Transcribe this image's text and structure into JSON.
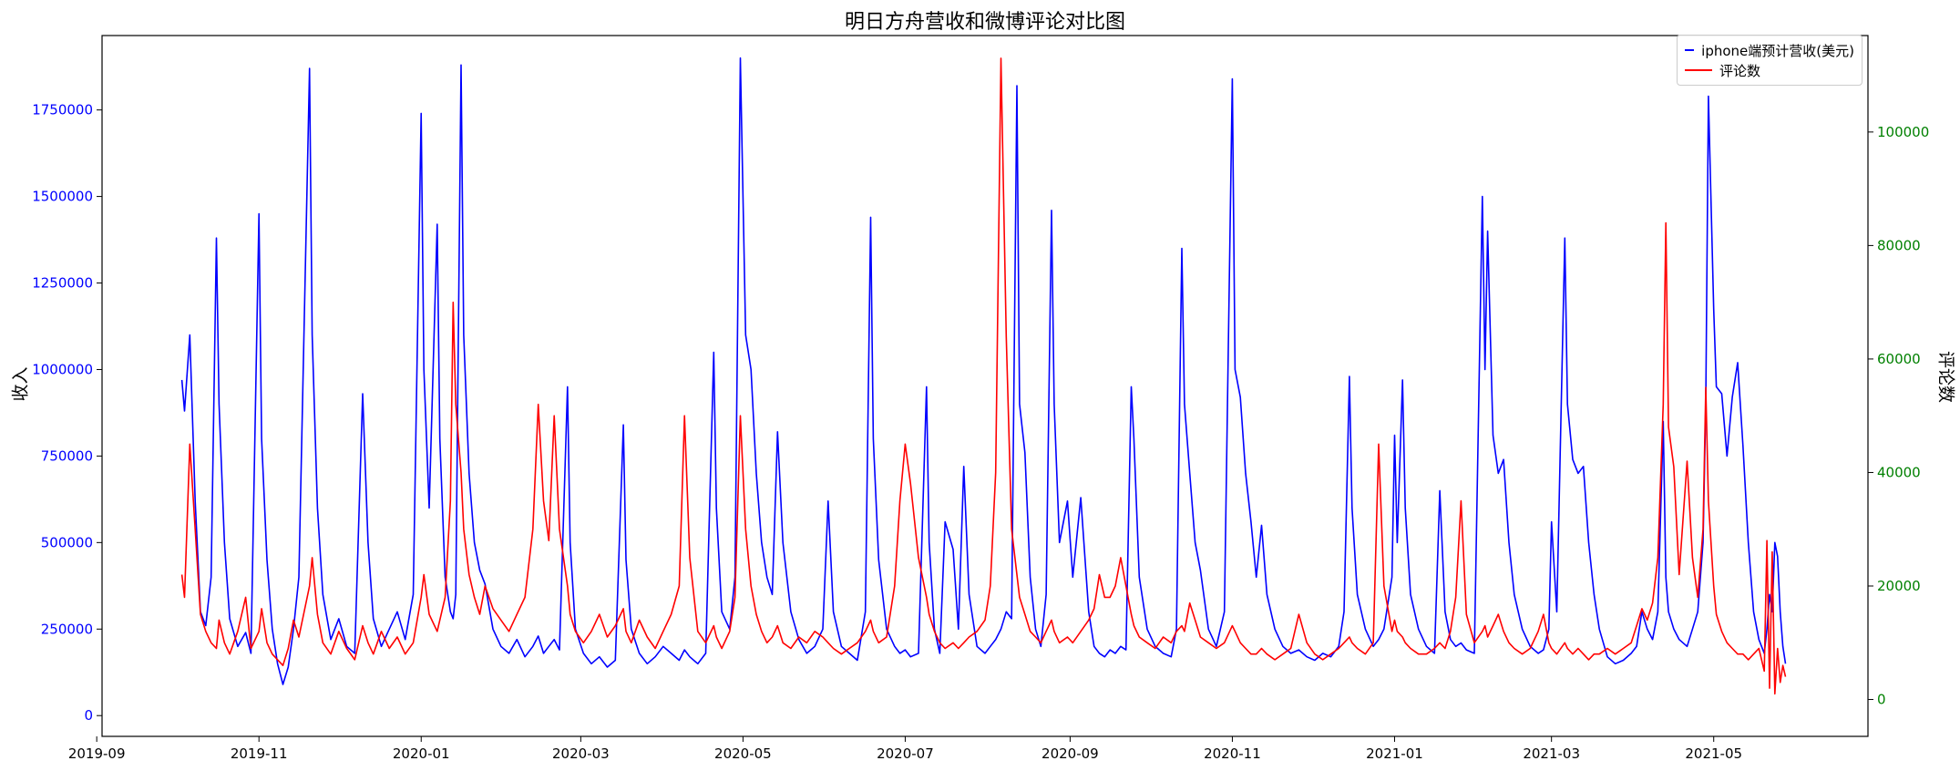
{
  "chart_data": {
    "type": "line",
    "title": "明日方舟营收和微博评论对比图",
    "grid": false,
    "legend_position": "upper right",
    "x_ticks": [
      "2019-09",
      "2019-11",
      "2020-01",
      "2020-03",
      "2020-05",
      "2020-07",
      "2020-09",
      "2020-11",
      "2021-01",
      "2021-03",
      "2021-05"
    ],
    "x_range": [
      "2019-09-03",
      "2021-06-28"
    ],
    "left_axis": {
      "label": "收入",
      "tick_color": "#0000ff",
      "ticks": [
        0,
        250000,
        500000,
        750000,
        1000000,
        1250000,
        1500000,
        1750000
      ],
      "range": [
        -60000,
        1965000
      ]
    },
    "right_axis": {
      "label": "评论数",
      "tick_color": "#008000",
      "ticks": [
        0,
        20000,
        40000,
        60000,
        80000,
        100000
      ],
      "range": [
        -6500,
        117000
      ]
    },
    "dates": [
      "2019-10-03",
      "2019-10-04",
      "2019-10-06",
      "2019-10-08",
      "2019-10-10",
      "2019-10-12",
      "2019-10-14",
      "2019-10-16",
      "2019-10-17",
      "2019-10-19",
      "2019-10-21",
      "2019-10-24",
      "2019-10-27",
      "2019-10-29",
      "2019-11-01",
      "2019-11-02",
      "2019-11-04",
      "2019-11-06",
      "2019-11-08",
      "2019-11-10",
      "2019-11-12",
      "2019-11-14",
      "2019-11-16",
      "2019-11-20",
      "2019-11-21",
      "2019-11-23",
      "2019-11-25",
      "2019-11-28",
      "2019-12-01",
      "2019-12-04",
      "2019-12-07",
      "2019-12-10",
      "2019-12-12",
      "2019-12-14",
      "2019-12-17",
      "2019-12-20",
      "2019-12-23",
      "2019-12-26",
      "2019-12-29",
      "2020-01-01",
      "2020-01-02",
      "2020-01-04",
      "2020-01-07",
      "2020-01-08",
      "2020-01-10",
      "2020-01-12",
      "2020-01-13",
      "2020-01-14",
      "2020-01-16",
      "2020-01-17",
      "2020-01-19",
      "2020-01-21",
      "2020-01-23",
      "2020-01-25",
      "2020-01-28",
      "2020-01-31",
      "2020-02-03",
      "2020-02-06",
      "2020-02-09",
      "2020-02-12",
      "2020-02-14",
      "2020-02-16",
      "2020-02-18",
      "2020-02-20",
      "2020-02-22",
      "2020-02-25",
      "2020-02-26",
      "2020-02-28",
      "2020-03-02",
      "2020-03-05",
      "2020-03-08",
      "2020-03-11",
      "2020-03-14",
      "2020-03-17",
      "2020-03-18",
      "2020-03-20",
      "2020-03-23",
      "2020-03-26",
      "2020-03-29",
      "2020-04-01",
      "2020-04-04",
      "2020-04-07",
      "2020-04-09",
      "2020-04-11",
      "2020-04-14",
      "2020-04-17",
      "2020-04-20",
      "2020-04-21",
      "2020-04-23",
      "2020-04-26",
      "2020-04-28",
      "2020-04-30",
      "2020-05-02",
      "2020-05-04",
      "2020-05-06",
      "2020-05-08",
      "2020-05-10",
      "2020-05-12",
      "2020-05-14",
      "2020-05-16",
      "2020-05-19",
      "2020-05-22",
      "2020-05-25",
      "2020-05-28",
      "2020-05-31",
      "2020-06-02",
      "2020-06-04",
      "2020-06-07",
      "2020-06-10",
      "2020-06-13",
      "2020-06-16",
      "2020-06-18",
      "2020-06-19",
      "2020-06-21",
      "2020-06-24",
      "2020-06-27",
      "2020-06-29",
      "2020-07-01",
      "2020-07-03",
      "2020-07-06",
      "2020-07-09",
      "2020-07-10",
      "2020-07-12",
      "2020-07-14",
      "2020-07-16",
      "2020-07-19",
      "2020-07-21",
      "2020-07-23",
      "2020-07-25",
      "2020-07-28",
      "2020-07-31",
      "2020-08-02",
      "2020-08-04",
      "2020-08-06",
      "2020-08-08",
      "2020-08-10",
      "2020-08-12",
      "2020-08-13",
      "2020-08-15",
      "2020-08-17",
      "2020-08-19",
      "2020-08-21",
      "2020-08-23",
      "2020-08-25",
      "2020-08-26",
      "2020-08-28",
      "2020-08-31",
      "2020-09-02",
      "2020-09-05",
      "2020-09-08",
      "2020-09-10",
      "2020-09-12",
      "2020-09-14",
      "2020-09-16",
      "2020-09-18",
      "2020-09-20",
      "2020-09-22",
      "2020-09-24",
      "2020-09-25",
      "2020-09-27",
      "2020-09-30",
      "2020-10-03",
      "2020-10-06",
      "2020-10-09",
      "2020-10-11",
      "2020-10-13",
      "2020-10-14",
      "2020-10-16",
      "2020-10-18",
      "2020-10-20",
      "2020-10-23",
      "2020-10-26",
      "2020-10-29",
      "2020-11-01",
      "2020-11-02",
      "2020-11-04",
      "2020-11-06",
      "2020-11-08",
      "2020-11-10",
      "2020-11-12",
      "2020-11-14",
      "2020-11-17",
      "2020-11-20",
      "2020-11-23",
      "2020-11-26",
      "2020-11-29",
      "2020-12-02",
      "2020-12-05",
      "2020-12-08",
      "2020-12-11",
      "2020-12-13",
      "2020-12-15",
      "2020-12-16",
      "2020-12-18",
      "2020-12-21",
      "2020-12-24",
      "2020-12-26",
      "2020-12-28",
      "2020-12-31",
      "2021-01-01",
      "2021-01-02",
      "2021-01-04",
      "2021-01-05",
      "2021-01-07",
      "2021-01-10",
      "2021-01-13",
      "2021-01-16",
      "2021-01-18",
      "2021-01-20",
      "2021-01-22",
      "2021-01-24",
      "2021-01-26",
      "2021-01-28",
      "2021-01-31",
      "2021-02-03",
      "2021-02-04",
      "2021-02-05",
      "2021-02-07",
      "2021-02-09",
      "2021-02-11",
      "2021-02-13",
      "2021-02-15",
      "2021-02-18",
      "2021-02-21",
      "2021-02-24",
      "2021-02-26",
      "2021-02-28",
      "2021-03-01",
      "2021-03-03",
      "2021-03-06",
      "2021-03-07",
      "2021-03-09",
      "2021-03-11",
      "2021-03-13",
      "2021-03-15",
      "2021-03-17",
      "2021-03-19",
      "2021-03-22",
      "2021-03-25",
      "2021-03-28",
      "2021-03-31",
      "2021-04-02",
      "2021-04-04",
      "2021-04-06",
      "2021-04-08",
      "2021-04-10",
      "2021-04-12",
      "2021-04-13",
      "2021-04-14",
      "2021-04-16",
      "2021-04-18",
      "2021-04-21",
      "2021-04-23",
      "2021-04-25",
      "2021-04-27",
      "2021-04-28",
      "2021-04-29",
      "2021-05-01",
      "2021-05-02",
      "2021-05-04",
      "2021-05-06",
      "2021-05-08",
      "2021-05-10",
      "2021-05-12",
      "2021-05-14",
      "2021-05-16",
      "2021-05-18",
      "2021-05-20",
      "2021-05-21",
      "2021-05-22",
      "2021-05-23",
      "2021-05-24",
      "2021-05-25",
      "2021-05-26",
      "2021-05-27",
      "2021-05-28"
    ],
    "series": [
      {
        "name": "iphone端预计营收(美元)",
        "color": "#0000ff",
        "axis": "left",
        "values": [
          970000,
          880000,
          1100000,
          620000,
          300000,
          260000,
          400000,
          1380000,
          900000,
          500000,
          280000,
          200000,
          240000,
          180000,
          1450000,
          800000,
          450000,
          250000,
          150000,
          90000,
          140000,
          250000,
          400000,
          1870000,
          1100000,
          600000,
          350000,
          220000,
          280000,
          200000,
          180000,
          930000,
          500000,
          280000,
          200000,
          250000,
          300000,
          220000,
          350000,
          1740000,
          1000000,
          600000,
          1420000,
          800000,
          400000,
          300000,
          280000,
          350000,
          1880000,
          1100000,
          700000,
          500000,
          420000,
          380000,
          250000,
          200000,
          180000,
          220000,
          170000,
          200000,
          230000,
          180000,
          200000,
          220000,
          190000,
          950000,
          500000,
          250000,
          180000,
          150000,
          170000,
          140000,
          160000,
          840000,
          450000,
          250000,
          180000,
          150000,
          170000,
          200000,
          180000,
          160000,
          190000,
          170000,
          150000,
          180000,
          1050000,
          600000,
          300000,
          250000,
          400000,
          1900000,
          1100000,
          1000000,
          700000,
          500000,
          400000,
          350000,
          820000,
          500000,
          300000,
          220000,
          180000,
          200000,
          250000,
          620000,
          300000,
          200000,
          180000,
          160000,
          300000,
          1440000,
          800000,
          450000,
          250000,
          200000,
          180000,
          190000,
          170000,
          180000,
          950000,
          500000,
          250000,
          180000,
          560000,
          480000,
          250000,
          720000,
          350000,
          200000,
          180000,
          200000,
          220000,
          250000,
          300000,
          280000,
          1820000,
          900000,
          760000,
          400000,
          250000,
          200000,
          350000,
          1460000,
          900000,
          500000,
          620000,
          400000,
          630000,
          300000,
          200000,
          180000,
          170000,
          190000,
          180000,
          200000,
          190000,
          950000,
          800000,
          400000,
          250000,
          200000,
          180000,
          170000,
          250000,
          1350000,
          900000,
          700000,
          500000,
          420000,
          250000,
          200000,
          300000,
          1840000,
          1000000,
          920000,
          700000,
          560000,
          400000,
          550000,
          350000,
          250000,
          200000,
          180000,
          190000,
          170000,
          160000,
          180000,
          170000,
          200000,
          300000,
          980000,
          600000,
          350000,
          250000,
          200000,
          220000,
          250000,
          400000,
          810000,
          500000,
          970000,
          600000,
          350000,
          250000,
          200000,
          180000,
          650000,
          300000,
          220000,
          200000,
          210000,
          190000,
          180000,
          1500000,
          1000000,
          1400000,
          810000,
          700000,
          740000,
          500000,
          350000,
          250000,
          200000,
          180000,
          190000,
          250000,
          560000,
          300000,
          1380000,
          900000,
          740000,
          700000,
          720000,
          500000,
          350000,
          250000,
          170000,
          150000,
          160000,
          180000,
          200000,
          300000,
          250000,
          220000,
          300000,
          850000,
          400000,
          300000,
          250000,
          220000,
          200000,
          250000,
          300000,
          500000,
          900000,
          1790000,
          1174000,
          950000,
          930000,
          750000,
          920000,
          1020000,
          780000,
          500000,
          300000,
          220000,
          180000,
          250000,
          350000,
          300000,
          500000,
          460000,
          300000,
          200000,
          150000
        ]
      },
      {
        "name": "评论数",
        "color": "#ff0000",
        "axis": "right",
        "values": [
          22000,
          18000,
          45000,
          30000,
          15000,
          12000,
          10000,
          9000,
          14000,
          10000,
          8000,
          12000,
          18000,
          9000,
          12000,
          16000,
          10000,
          8000,
          7000,
          6000,
          9000,
          14000,
          11000,
          20000,
          25000,
          15000,
          10000,
          8000,
          12000,
          9000,
          7000,
          13000,
          10000,
          8000,
          12000,
          9000,
          11000,
          8000,
          10000,
          18000,
          22000,
          15000,
          12000,
          14000,
          18000,
          35000,
          70000,
          52000,
          40000,
          30000,
          22000,
          18000,
          15000,
          20000,
          16000,
          14000,
          12000,
          15000,
          18000,
          30000,
          52000,
          35000,
          28000,
          50000,
          30000,
          20000,
          15000,
          12000,
          10000,
          12000,
          15000,
          11000,
          13000,
          16000,
          12000,
          10000,
          14000,
          11000,
          9000,
          12000,
          15000,
          20000,
          50000,
          25000,
          12000,
          10000,
          13000,
          11000,
          9000,
          12000,
          18000,
          50000,
          30000,
          20000,
          15000,
          12000,
          10000,
          11000,
          13000,
          10000,
          9000,
          11000,
          10000,
          12000,
          11000,
          10000,
          9000,
          8000,
          9000,
          10000,
          12000,
          14000,
          12000,
          10000,
          11000,
          20000,
          35000,
          45000,
          38000,
          25000,
          18000,
          15000,
          12000,
          10000,
          9000,
          10000,
          9000,
          10000,
          11000,
          12000,
          14000,
          20000,
          40000,
          113000,
          64000,
          30000,
          22000,
          18000,
          15000,
          12000,
          11000,
          10000,
          12000,
          14000,
          12000,
          10000,
          11000,
          10000,
          12000,
          14000,
          16000,
          22000,
          18000,
          18000,
          20000,
          25000,
          20000,
          15000,
          13000,
          11000,
          10000,
          9000,
          11000,
          10000,
          12000,
          13000,
          12000,
          17000,
          14000,
          11000,
          10000,
          9000,
          10000,
          13000,
          12000,
          10000,
          9000,
          8000,
          8000,
          9000,
          8000,
          7000,
          8000,
          9000,
          15000,
          10000,
          8000,
          7000,
          8000,
          9000,
          10000,
          11000,
          10000,
          9000,
          8000,
          10000,
          45000,
          20000,
          12000,
          14000,
          12000,
          11000,
          10000,
          9000,
          8000,
          8000,
          9000,
          10000,
          9000,
          12000,
          18000,
          35000,
          15000,
          10000,
          12000,
          13000,
          11000,
          13000,
          15000,
          12000,
          10000,
          9000,
          8000,
          9000,
          12000,
          15000,
          10000,
          9000,
          8000,
          10000,
          9000,
          8000,
          9000,
          8000,
          7000,
          8000,
          8000,
          9000,
          8000,
          9000,
          10000,
          13000,
          16000,
          14000,
          17000,
          25000,
          52000,
          84000,
          48000,
          41000,
          22000,
          42000,
          25000,
          18000,
          30000,
          55000,
          35000,
          20000,
          15000,
          12000,
          10000,
          9000,
          8000,
          8000,
          7000,
          8000,
          9000,
          5000,
          28000,
          2000,
          26000,
          1000,
          9000,
          3000,
          6000,
          4000
        ]
      }
    ]
  }
}
